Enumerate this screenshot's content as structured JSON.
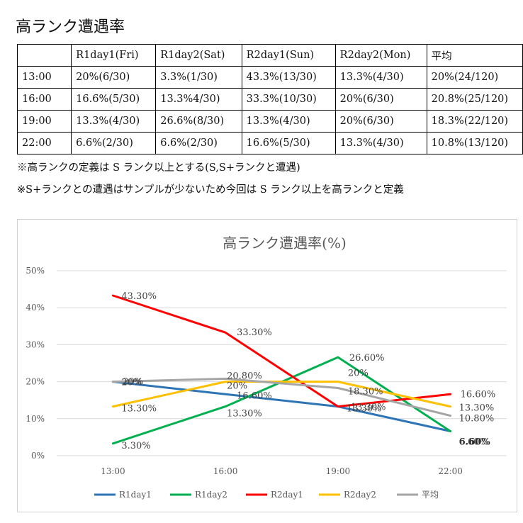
{
  "heading": "高ランク遭遇率",
  "table": {
    "header": [
      "",
      "R1day1(Fri)",
      "R1day2(Sat)",
      "R2day1(Sun)",
      "R2day2(Mon)",
      "平均"
    ],
    "rows": [
      [
        "13:00",
        "20%(6/30)",
        "3.3%(1/30)",
        "43.3%(13/30)",
        "13.3%(4/30)",
        "20%(24/120)"
      ],
      [
        "16:00",
        "16.6%(5/30)",
        "13.3%4/30)",
        "33.3%(10/30)",
        "20%(6/30)",
        "20.8%(25/120)"
      ],
      [
        "19:00",
        "13.3%(4/30)",
        "26.6%(8/30)",
        "13.3%(4/30)",
        "20%(6/30)",
        "18.3%(22/120)"
      ],
      [
        "22:00",
        "6.6%(2/30)",
        "6.6%(2/30)",
        "16.6%(5/30)",
        "13.3%(4/30)",
        "10.8%(13/120)"
      ]
    ]
  },
  "notes": [
    "※高ランクの定義は S ランク以上とする(S,S+ランクと遭遇)",
    "※S+ランクとの遭遇はサンプルが少ないため今回は S ランク以上を高ランクと定義"
  ],
  "chart_data": {
    "type": "line",
    "title": "高ランク遭遇率(%)",
    "categories": [
      "13:00",
      "16:00",
      "19:00",
      "22:00"
    ],
    "ylim": [
      0,
      50
    ],
    "yticks": [
      "0%",
      "10%",
      "20%",
      "30%",
      "40%",
      "50%"
    ],
    "grid": true,
    "legend_position": "bottom",
    "series": [
      {
        "name": "R1day1",
        "color": "#2e75b6",
        "values": [
          20,
          16.6,
          13.3,
          6.6
        ],
        "labels": [
          "20%",
          "16.60%",
          "13.30%",
          "6.60%"
        ]
      },
      {
        "name": "R1day2",
        "color": "#00b050",
        "values": [
          3.3,
          13.3,
          26.6,
          6.6
        ],
        "labels": [
          "3.30%",
          "13.30%",
          "26.60%",
          "6.60%"
        ]
      },
      {
        "name": "R2day1",
        "color": "#ff0000",
        "values": [
          43.3,
          33.3,
          13.3,
          16.6
        ],
        "labels": [
          "43.30%",
          "33.30%",
          "13.30%",
          "16.60%"
        ]
      },
      {
        "name": "R2day2",
        "color": "#ffc000",
        "values": [
          13.3,
          20,
          20,
          13.3
        ],
        "labels": [
          "13.30%",
          "20%",
          "20%",
          "13.30%"
        ]
      },
      {
        "name": "平均",
        "color": "#a5a5a5",
        "values": [
          20,
          20.8,
          18.3,
          10.8
        ],
        "labels": [
          "20%",
          "20.80%",
          "18.30%",
          "10.80%"
        ]
      }
    ]
  }
}
